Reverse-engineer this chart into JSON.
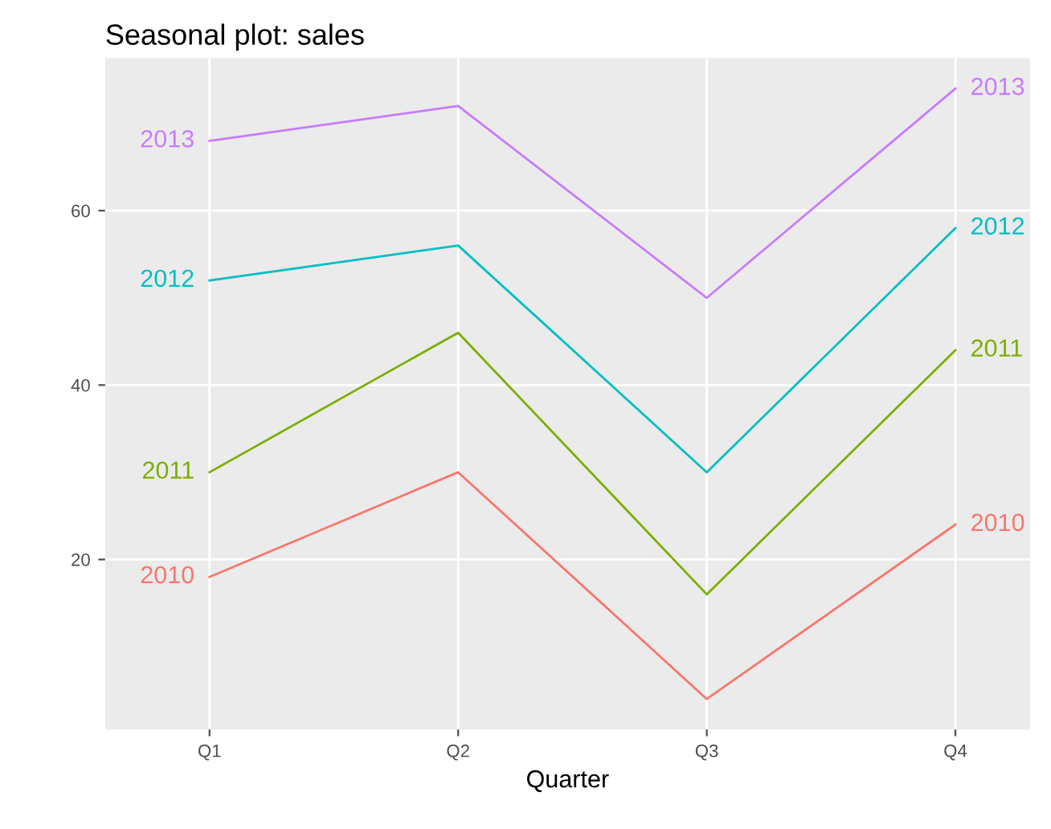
{
  "chart_data": {
    "type": "line",
    "title": "Seasonal plot: sales",
    "xlabel": "Quarter",
    "categories": [
      "Q1",
      "Q2",
      "Q3",
      "Q4"
    ],
    "series": [
      {
        "name": "2010",
        "color": "#f8766d",
        "values": [
          18,
          30,
          4,
          24
        ]
      },
      {
        "name": "2011",
        "color": "#7cae00",
        "values": [
          30,
          46,
          16,
          44
        ]
      },
      {
        "name": "2012",
        "color": "#00bfc4",
        "values": [
          52,
          56,
          30,
          58
        ]
      },
      {
        "name": "2013",
        "color": "#c77cff",
        "values": [
          68,
          72,
          50,
          74
        ]
      }
    ],
    "ylim": [
      0.5,
      77.5
    ],
    "yticks": [
      20,
      40,
      60
    ],
    "grid": true,
    "legend": false,
    "marker": "none",
    "line_style": "solid"
  }
}
